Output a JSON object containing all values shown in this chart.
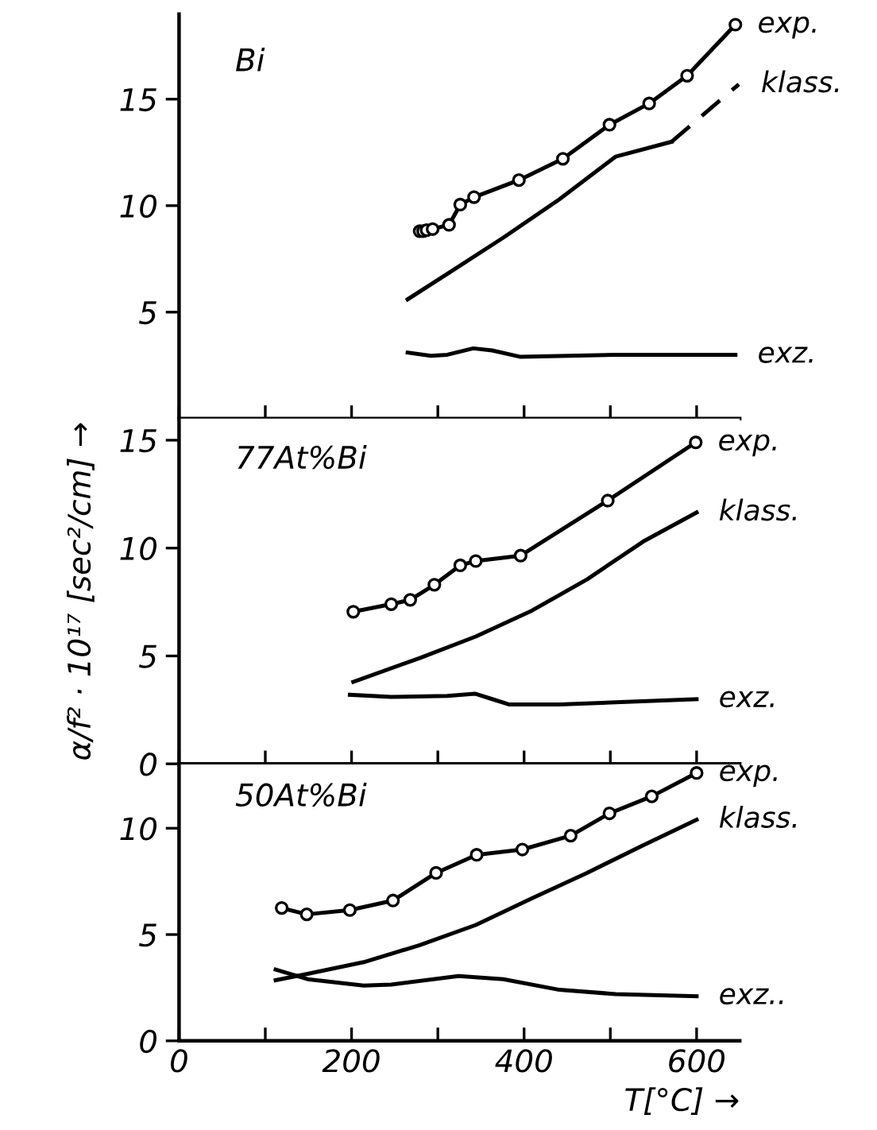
{
  "chart_data": [
    {
      "type": "line",
      "title": "Bi",
      "xlim": [
        0,
        650
      ],
      "ylim": [
        0,
        19
      ],
      "yticks": [
        5,
        10,
        15
      ],
      "xticks": [
        {
          "value": 0,
          "label": null
        },
        {
          "value": 100,
          "label": null
        },
        {
          "value": 200,
          "label": null
        },
        {
          "value": 300,
          "label": null
        },
        {
          "value": 400,
          "label": null
        },
        {
          "value": 500,
          "label": null
        },
        {
          "value": 600,
          "label": null
        }
      ],
      "tick_labels": "y",
      "series": [
        {
          "name": "exp.",
          "color": "#000000",
          "marker": "circle",
          "x": [
            279,
            283,
            287,
            294,
            313,
            326,
            342,
            394,
            445,
            499,
            545,
            589,
            645
          ],
          "values": [
            8.8,
            8.8,
            8.85,
            8.9,
            9.1,
            10.05,
            10.4,
            11.2,
            12.2,
            13.8,
            14.8,
            16.1,
            18.5
          ]
        },
        {
          "color": "#000000",
          "x": [
            265,
            311,
            376,
            441,
            506,
            571
          ],
          "values": [
            5.6,
            6.8,
            8.5,
            10.3,
            12.3,
            13.0
          ]
        },
        {
          "name": "klass.",
          "color": "#000000",
          "line_style": "dashed",
          "x": [
            571,
            649
          ],
          "values": [
            13.0,
            15.7
          ]
        },
        {
          "name": "exz.",
          "color": "#000000",
          "x": [
            265,
            292,
            311,
            341,
            363,
            396,
            506,
            645
          ],
          "values": [
            3.1,
            2.95,
            3.0,
            3.3,
            3.2,
            2.9,
            3.0,
            3.0
          ]
        }
      ]
    },
    {
      "type": "line",
      "title": "77At%Bi",
      "ylabel": "α/f² · 10¹⁷ [sec²/cm] →",
      "xlim": [
        0,
        650
      ],
      "ylim": [
        0,
        16
      ],
      "yticks": [
        0,
        5,
        10,
        15
      ],
      "xticks": [
        {
          "value": 0,
          "label": null
        },
        {
          "value": 100,
          "label": null
        },
        {
          "value": 200,
          "label": null
        },
        {
          "value": 300,
          "label": null
        },
        {
          "value": 400,
          "label": null
        },
        {
          "value": 500,
          "label": null
        },
        {
          "value": 600,
          "label": null
        }
      ],
      "tick_labels": "y",
      "series": [
        {
          "name": "exp.",
          "color": "#000000",
          "marker": "circle",
          "x": [
            202,
            246,
            268,
            296,
            326,
            344,
            396,
            497,
            599
          ],
          "values": [
            7.05,
            7.4,
            7.6,
            8.3,
            9.2,
            9.4,
            9.65,
            12.2,
            14.9
          ]
        },
        {
          "name": "klass.",
          "color": "#000000",
          "x": [
            202,
            279,
            344,
            409,
            473,
            538,
            600
          ],
          "values": [
            3.8,
            4.9,
            5.9,
            7.1,
            8.55,
            10.3,
            11.65
          ]
        },
        {
          "name": "exz.",
          "color": "#000000",
          "x": [
            198,
            246,
            311,
            343,
            363,
            383,
            441,
            600
          ],
          "values": [
            3.2,
            3.1,
            3.15,
            3.25,
            3.0,
            2.75,
            2.75,
            3.0
          ]
        }
      ]
    },
    {
      "type": "line",
      "title": "50At%Bi",
      "xlabel": "T[°C] →",
      "xlim": [
        0,
        650
      ],
      "ylim": [
        0,
        13
      ],
      "yticks": [
        0,
        5,
        10
      ],
      "xticks": [
        0,
        {
          "value": 100,
          "label": null
        },
        200,
        {
          "value": 300,
          "label": null
        },
        400,
        {
          "value": 500,
          "label": null
        },
        600
      ],
      "series": [
        {
          "name": "exp.",
          "color": "#000000",
          "marker": "circle",
          "x": [
            119,
            148,
            198,
            248,
            298,
            345,
            398,
            454,
            499,
            548,
            600
          ],
          "values": [
            6.25,
            5.95,
            6.15,
            6.6,
            7.9,
            8.75,
            9.0,
            9.65,
            10.7,
            11.5,
            12.6
          ]
        },
        {
          "name": "klass.",
          "color": "#000000",
          "x": [
            112,
            149,
            214,
            279,
            344,
            409,
            473,
            538,
            600
          ],
          "values": [
            2.85,
            3.15,
            3.7,
            4.5,
            5.45,
            6.7,
            7.9,
            9.2,
            10.4
          ]
        },
        {
          "name": "exz..",
          "color": "#000000",
          "x": [
            112,
            149,
            214,
            246,
            324,
            376,
            441,
            506,
            600
          ],
          "values": [
            3.35,
            2.9,
            2.6,
            2.65,
            3.05,
            2.9,
            2.4,
            2.2,
            2.1
          ]
        }
      ]
    }
  ]
}
